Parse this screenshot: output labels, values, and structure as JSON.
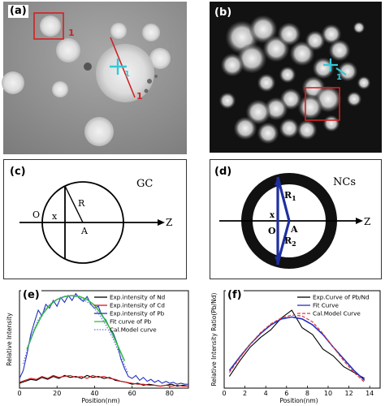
{
  "panels": {
    "a": {
      "label": "(a)",
      "marker_box": "1",
      "marker_line": "1",
      "marker_cross": "1",
      "colors": {
        "box": "#d42020",
        "line": "#d42020",
        "cross": "#35c8d8",
        "background": "#8a8a8a"
      }
    },
    "b": {
      "label": "(b)",
      "marker_cross": "1",
      "colors": {
        "box": "#d42020",
        "cross": "#35c8d8",
        "background": "#121212"
      }
    },
    "c": {
      "label": "(c)",
      "title": "GC",
      "labels": {
        "radius": "R",
        "origin": "O",
        "x": "x",
        "point": "A",
        "axis": "Z"
      }
    },
    "d": {
      "label": "(d)",
      "title": "NCs",
      "labels": {
        "r1": "R",
        "r1_sub": "1",
        "r2": "R",
        "r2_sub": "2",
        "origin": "O",
        "x": "x",
        "point": "A",
        "axis": "Z"
      },
      "colors": {
        "ring": "#111111",
        "chords": "#1f2fa0"
      }
    },
    "e": {
      "label": "(e)"
    },
    "f": {
      "label": "(f)"
    }
  },
  "chart_data": [
    {
      "panel": "e",
      "type": "line",
      "xlabel": "Position(nm)",
      "ylabel": "Relative Intensity",
      "xlim": [
        0,
        90
      ],
      "ylim": [
        0,
        1
      ],
      "xticks": [
        0,
        20,
        40,
        60,
        80
      ],
      "legend_position": "top-right",
      "series": [
        {
          "name": "Exp.intensity of Nd",
          "color": "#000000",
          "style": "solid",
          "x": [
            0,
            3,
            6,
            9,
            12,
            15,
            18,
            21,
            24,
            27,
            30,
            33,
            36,
            39,
            42,
            45,
            48,
            51,
            54,
            57,
            60,
            63,
            66,
            69,
            72,
            75,
            78,
            81,
            84,
            87,
            90
          ],
          "y": [
            0.05,
            0.07,
            0.09,
            0.08,
            0.11,
            0.09,
            0.12,
            0.1,
            0.13,
            0.11,
            0.12,
            0.1,
            0.13,
            0.11,
            0.12,
            0.1,
            0.11,
            0.08,
            0.07,
            0.06,
            0.04,
            0.05,
            0.03,
            0.04,
            0.03,
            0.02,
            0.03,
            0.04,
            0.02,
            0.03,
            0.02
          ]
        },
        {
          "name": "Exp.intensity of Cd",
          "color": "#d01818",
          "style": "solid",
          "x": [
            0,
            3,
            6,
            9,
            12,
            15,
            18,
            21,
            24,
            27,
            30,
            33,
            36,
            39,
            42,
            45,
            48,
            51,
            54,
            57,
            60,
            63,
            66,
            69,
            72,
            75,
            78,
            81,
            84,
            87,
            90
          ],
          "y": [
            0.06,
            0.08,
            0.1,
            0.09,
            0.12,
            0.1,
            0.13,
            0.11,
            0.12,
            0.13,
            0.11,
            0.12,
            0.1,
            0.13,
            0.11,
            0.12,
            0.1,
            0.09,
            0.07,
            0.06,
            0.05,
            0.04,
            0.04,
            0.03,
            0.03,
            0.02,
            0.03,
            0.02,
            0.03,
            0.02,
            0.02
          ]
        },
        {
          "name": "Exp.intensity of Pb",
          "color": "#2230c0",
          "style": "solid",
          "x": [
            0,
            2,
            4,
            6,
            8,
            10,
            12,
            14,
            16,
            18,
            20,
            22,
            24,
            26,
            28,
            30,
            32,
            34,
            36,
            38,
            40,
            42,
            44,
            46,
            48,
            50,
            52,
            54,
            56,
            58,
            60,
            62,
            64,
            66,
            68,
            70,
            72,
            74,
            76,
            78,
            80,
            82,
            84,
            86,
            88,
            90
          ],
          "y": [
            0.1,
            0.18,
            0.35,
            0.55,
            0.68,
            0.8,
            0.74,
            0.86,
            0.82,
            0.9,
            0.84,
            0.93,
            0.88,
            0.95,
            0.9,
            0.97,
            0.92,
            0.89,
            0.94,
            0.86,
            0.82,
            0.84,
            0.74,
            0.7,
            0.62,
            0.56,
            0.46,
            0.3,
            0.2,
            0.12,
            0.1,
            0.13,
            0.08,
            0.11,
            0.07,
            0.09,
            0.06,
            0.08,
            0.05,
            0.07,
            0.05,
            0.06,
            0.04,
            0.05,
            0.04,
            0.04
          ]
        },
        {
          "name": "Fit curve of Pb",
          "color": "#30c040",
          "style": "solid",
          "x": [
            4,
            8,
            12,
            16,
            20,
            24,
            28,
            32,
            36,
            40,
            44,
            48,
            52,
            56
          ],
          "y": [
            0.4,
            0.6,
            0.75,
            0.85,
            0.91,
            0.94,
            0.95,
            0.94,
            0.91,
            0.85,
            0.75,
            0.62,
            0.45,
            0.28
          ]
        },
        {
          "name": "Cal.Model curve",
          "color": "#6a6ae0",
          "style": "dotted",
          "x": [
            2,
            6,
            10,
            14,
            18,
            22,
            26,
            30,
            34,
            38,
            42,
            46,
            50,
            54,
            58
          ],
          "y": [
            0.25,
            0.52,
            0.7,
            0.82,
            0.89,
            0.93,
            0.95,
            0.94,
            0.91,
            0.86,
            0.77,
            0.65,
            0.5,
            0.32,
            0.15
          ]
        }
      ]
    },
    {
      "panel": "f",
      "type": "line",
      "xlabel": "Position(nm)",
      "ylabel": "Relative  Intensity Ratio(Pb/Nd)",
      "xlim": [
        0,
        15
      ],
      "ylim": [
        0,
        1
      ],
      "xticks": [
        0,
        2,
        4,
        6,
        8,
        10,
        12,
        14
      ],
      "legend_position": "top-right",
      "series": [
        {
          "name": "Exp.Curve of Pb/Nd",
          "color": "#000000",
          "style": "solid",
          "x": [
            0.5,
            1.5,
            2.5,
            3.5,
            4.5,
            5.5,
            6.5,
            7.5,
            8.5,
            9.5,
            10.5,
            11.5,
            12.5,
            13.5
          ],
          "y": [
            0.12,
            0.28,
            0.42,
            0.52,
            0.6,
            0.72,
            0.8,
            0.62,
            0.55,
            0.4,
            0.33,
            0.22,
            0.16,
            0.1
          ]
        },
        {
          "name": "Fit Curve",
          "color": "#2230c0",
          "style": "solid",
          "x": [
            0.5,
            1.5,
            2.5,
            3.5,
            4.5,
            5.5,
            6.5,
            7.5,
            8.5,
            9.5,
            10.5,
            11.5,
            12.5,
            13.5
          ],
          "y": [
            0.18,
            0.32,
            0.45,
            0.56,
            0.65,
            0.71,
            0.73,
            0.71,
            0.65,
            0.55,
            0.42,
            0.3,
            0.18,
            0.08
          ]
        },
        {
          "name": "Cal.Model Curve",
          "color": "#e03a3a",
          "style": "dashed",
          "x": [
            0.5,
            1.5,
            2.5,
            3.5,
            4.5,
            5.5,
            6.5,
            7.5,
            8.5,
            9.5,
            10.5,
            11.5,
            12.5,
            13.5
          ],
          "y": [
            0.16,
            0.31,
            0.45,
            0.57,
            0.66,
            0.72,
            0.75,
            0.74,
            0.68,
            0.56,
            0.42,
            0.28,
            0.16,
            0.06
          ]
        }
      ]
    }
  ]
}
